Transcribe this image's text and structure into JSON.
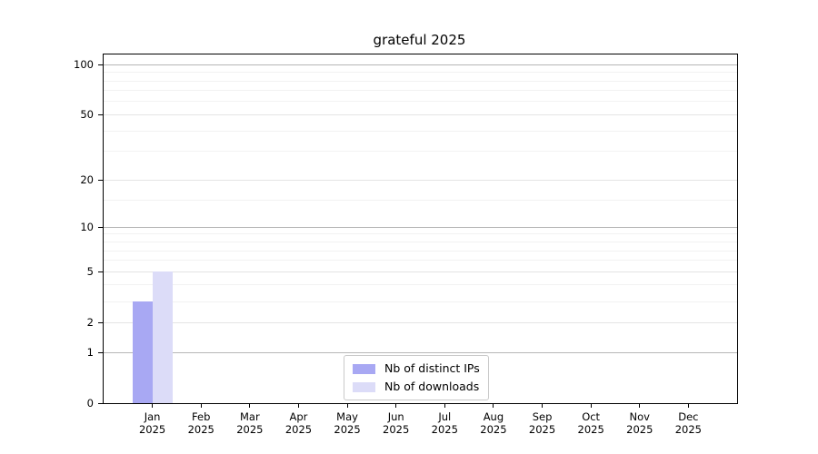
{
  "title": "grateful 2025",
  "chart_data": {
    "type": "bar",
    "title": "grateful 2025",
    "xlabel": "",
    "ylabel": "",
    "categories": [
      "Jan",
      "Feb",
      "Mar",
      "Apr",
      "May",
      "Jun",
      "Jul",
      "Aug",
      "Sep",
      "Oct",
      "Nov",
      "Dec"
    ],
    "category_year": "2025",
    "series": [
      {
        "name": "Nb of distinct IPs",
        "color": "#a8a8f3",
        "values": [
          3,
          0,
          0,
          0,
          0,
          0,
          0,
          0,
          0,
          0,
          0,
          0
        ]
      },
      {
        "name": "Nb of downloads",
        "color": "#dcdcf8",
        "values": [
          5,
          0,
          0,
          0,
          0,
          0,
          0,
          0,
          0,
          0,
          0,
          0
        ]
      }
    ],
    "y_scale": "log1p",
    "ylim": [
      0,
      115
    ],
    "y_ticks": [
      0,
      1,
      2,
      5,
      10,
      20,
      50,
      100
    ],
    "y_decade_ticks": [
      1,
      10,
      100
    ],
    "y_minor_gridlines": [
      3,
      4,
      6,
      7,
      8,
      9,
      15,
      30,
      40,
      60,
      70,
      80,
      90
    ],
    "grid": true,
    "legend_position": "lower center",
    "colors": {
      "decade_gridline": "#b6b6b6",
      "major_gridline": "#e4e4e4",
      "minor_gridline": "#f2f2f2",
      "axis": "#000000",
      "background": "#ffffff"
    }
  }
}
